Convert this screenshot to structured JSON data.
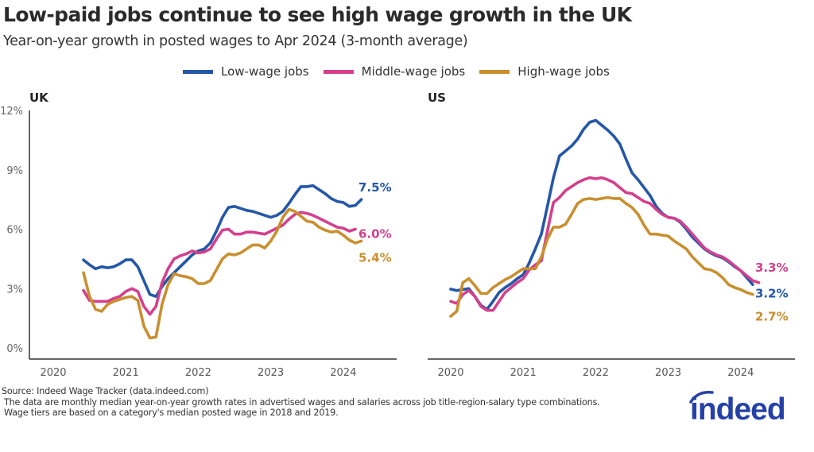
{
  "title": "Low-paid jobs continue to see high wage growth in the UK",
  "subtitle": "Year-on-year growth in posted wages to Apr 2024 (3-month average)",
  "colors": {
    "low": "#2557a7",
    "middle": "#d4408d",
    "high": "#c98f2f",
    "axis": "#333333",
    "logo": "#2541a8"
  },
  "legend": [
    {
      "key": "low",
      "label": "Low-wage jobs"
    },
    {
      "key": "middle",
      "label": "Middle-wage jobs"
    },
    {
      "key": "high",
      "label": "High-wage jobs"
    }
  ],
  "chart_data": [
    {
      "type": "line",
      "panel_title": "UK",
      "ylim": [
        0,
        12
      ],
      "yticks": [
        "0%",
        "3%",
        "6%",
        "9%",
        "12%"
      ],
      "ytick_values": [
        0,
        3,
        6,
        9,
        12
      ],
      "xticks": [
        "2020",
        "2021",
        "2022",
        "2023",
        "2024"
      ],
      "grid": false,
      "x": [
        "2020-06",
        "2020-07",
        "2020-08",
        "2020-09",
        "2020-10",
        "2020-11",
        "2020-12",
        "2021-01",
        "2021-02",
        "2021-03",
        "2021-04",
        "2021-05",
        "2021-06",
        "2021-07",
        "2021-08",
        "2021-09",
        "2021-10",
        "2021-11",
        "2021-12",
        "2022-01",
        "2022-02",
        "2022-03",
        "2022-04",
        "2022-05",
        "2022-06",
        "2022-07",
        "2022-08",
        "2022-09",
        "2022-10",
        "2022-11",
        "2022-12",
        "2023-01",
        "2023-02",
        "2023-03",
        "2023-04",
        "2023-05",
        "2023-06",
        "2023-07",
        "2023-08",
        "2023-09",
        "2023-10",
        "2023-11",
        "2023-12",
        "2024-01",
        "2024-02",
        "2024-03",
        "2024-04"
      ],
      "series": [
        {
          "name": "Low-wage jobs",
          "key": "low",
          "end_label": "7.5%",
          "values": [
            4.45,
            4.2,
            4.0,
            4.1,
            4.05,
            4.1,
            4.25,
            4.45,
            4.45,
            4.1,
            3.4,
            2.7,
            2.6,
            3.1,
            3.5,
            3.8,
            4.1,
            4.4,
            4.7,
            4.9,
            5.0,
            5.3,
            5.9,
            6.6,
            7.1,
            7.15,
            7.05,
            6.95,
            6.9,
            6.8,
            6.7,
            6.6,
            6.7,
            6.9,
            7.3,
            7.75,
            8.15,
            8.15,
            8.2,
            8.0,
            7.8,
            7.55,
            7.4,
            7.35,
            7.15,
            7.2,
            7.5
          ]
        },
        {
          "name": "Middle-wage jobs",
          "key": "middle",
          "end_label": "6.0%",
          "values": [
            2.9,
            2.4,
            2.35,
            2.35,
            2.35,
            2.5,
            2.6,
            2.85,
            3.0,
            2.85,
            2.1,
            1.7,
            2.1,
            3.3,
            4.0,
            4.5,
            4.65,
            4.75,
            4.9,
            4.8,
            4.85,
            5.0,
            5.5,
            5.95,
            6.0,
            5.75,
            5.75,
            5.85,
            5.85,
            5.8,
            5.75,
            5.9,
            6.05,
            6.2,
            6.5,
            6.75,
            6.85,
            6.8,
            6.7,
            6.55,
            6.4,
            6.25,
            6.1,
            6.05,
            5.9,
            6.0,
            null
          ]
        },
        {
          "name": "High-wage jobs",
          "key": "high",
          "end_label": "5.4%",
          "values": [
            3.8,
            2.6,
            1.95,
            1.85,
            2.2,
            2.35,
            2.45,
            2.55,
            2.6,
            2.4,
            1.1,
            0.5,
            0.55,
            2.2,
            3.2,
            3.75,
            3.65,
            3.6,
            3.5,
            3.25,
            3.25,
            3.4,
            3.95,
            4.5,
            4.75,
            4.7,
            4.8,
            5.0,
            5.2,
            5.2,
            5.05,
            5.4,
            5.9,
            6.6,
            7.0,
            6.9,
            6.65,
            6.4,
            6.35,
            6.1,
            5.95,
            5.85,
            5.9,
            5.7,
            5.45,
            5.3,
            5.4
          ]
        }
      ]
    },
    {
      "type": "line",
      "panel_title": "US",
      "ylim": [
        0,
        12
      ],
      "xticks": [
        "2020",
        "2021",
        "2022",
        "2023",
        "2024"
      ],
      "grid": false,
      "x": [
        "2020-01",
        "2020-02",
        "2020-03",
        "2020-04",
        "2020-05",
        "2020-06",
        "2020-07",
        "2020-08",
        "2020-09",
        "2020-10",
        "2020-11",
        "2020-12",
        "2021-01",
        "2021-02",
        "2021-03",
        "2021-04",
        "2021-05",
        "2021-06",
        "2021-07",
        "2021-08",
        "2021-09",
        "2021-10",
        "2021-11",
        "2021-12",
        "2022-01",
        "2022-02",
        "2022-03",
        "2022-04",
        "2022-05",
        "2022-06",
        "2022-07",
        "2022-08",
        "2022-09",
        "2022-10",
        "2022-11",
        "2022-12",
        "2023-01",
        "2023-02",
        "2023-03",
        "2023-04",
        "2023-05",
        "2023-06",
        "2023-07",
        "2023-08",
        "2023-09",
        "2023-10",
        "2023-11",
        "2023-12",
        "2024-01",
        "2024-02",
        "2024-03",
        "2024-04"
      ],
      "series": [
        {
          "name": "Low-wage jobs",
          "key": "low",
          "end_label": "3.2%",
          "values": [
            2.97,
            2.9,
            2.95,
            3.0,
            2.6,
            2.15,
            1.95,
            2.35,
            2.8,
            3.05,
            3.25,
            3.5,
            3.7,
            4.3,
            5.0,
            5.75,
            7.15,
            8.6,
            9.7,
            9.95,
            10.2,
            10.55,
            11.05,
            11.4,
            11.5,
            11.25,
            11.0,
            10.7,
            10.3,
            9.55,
            8.85,
            8.5,
            8.1,
            7.7,
            7.15,
            6.8,
            6.6,
            6.55,
            6.35,
            6.0,
            5.6,
            5.3,
            5.0,
            4.8,
            4.65,
            4.55,
            4.35,
            4.1,
            3.9,
            3.55,
            3.2,
            null
          ]
        },
        {
          "name": "Middle-wage jobs",
          "key": "middle",
          "end_label": "3.3%",
          "values": [
            2.35,
            2.25,
            2.7,
            2.9,
            2.6,
            2.1,
            1.9,
            1.9,
            2.35,
            2.8,
            3.05,
            3.3,
            3.5,
            3.95,
            4.2,
            4.4,
            5.9,
            7.35,
            7.6,
            7.95,
            8.15,
            8.35,
            8.5,
            8.6,
            8.55,
            8.6,
            8.5,
            8.35,
            8.1,
            7.85,
            7.8,
            7.6,
            7.4,
            7.3,
            7.0,
            6.75,
            6.6,
            6.55,
            6.4,
            6.1,
            5.75,
            5.4,
            5.05,
            4.85,
            4.7,
            4.6,
            4.4,
            4.15,
            3.9,
            3.65,
            3.4,
            3.3
          ]
        },
        {
          "name": "High-wage jobs",
          "key": "high",
          "end_label": "2.7%",
          "values": [
            1.6,
            1.85,
            3.3,
            3.5,
            3.15,
            2.75,
            2.75,
            3.05,
            3.25,
            3.45,
            3.6,
            3.8,
            4.0,
            4.0,
            4.0,
            4.6,
            5.5,
            6.1,
            6.1,
            6.25,
            6.75,
            7.3,
            7.5,
            7.55,
            7.5,
            7.55,
            7.6,
            7.55,
            7.55,
            7.3,
            7.1,
            6.75,
            6.2,
            5.75,
            5.75,
            5.7,
            5.65,
            5.4,
            5.2,
            5.0,
            4.6,
            4.3,
            4.0,
            3.95,
            3.8,
            3.55,
            3.2,
            3.05,
            2.95,
            2.8,
            2.7,
            null
          ]
        }
      ]
    }
  ],
  "footer": {
    "source": "Source: Indeed Wage Tracker (data.indeed.com)",
    "note1": "The data are monthly median year-on-year growth rates in advertised wages and salaries across job title-region-salary type combinations.",
    "note2": "Wage tiers are based on a category's median posted wage in 2018 and 2019."
  },
  "logo": {
    "text": "indeed"
  }
}
